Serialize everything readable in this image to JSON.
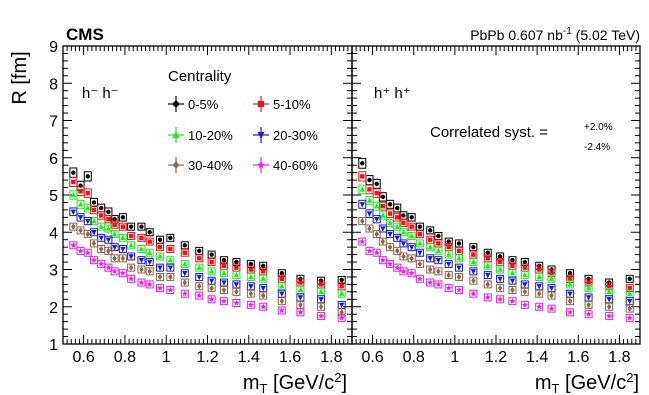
{
  "header": {
    "experiment": "CMS",
    "dataset_prefix": "PbPb 0.607 nb",
    "dataset_exponent": "-1",
    "dataset_suffix": " (5.02 TeV)"
  },
  "legend": {
    "title": "Centrality",
    "entries": [
      "0-5%",
      "5-10%",
      "10-20%",
      "20-30%",
      "30-40%",
      "40-60%"
    ],
    "colors": [
      "#000000",
      "#e8141e",
      "#22e822",
      "#1c1cc8",
      "#8c6448",
      "#e61ee6"
    ],
    "markers": [
      "circle",
      "square",
      "triangle-up",
      "triangle-down",
      "diamond",
      "star"
    ]
  },
  "annotation": {
    "prefix": "Correlated syst. =",
    "plus": "+2.0%",
    "minus": "-2.4%"
  },
  "chart_data": [
    {
      "type": "scatter",
      "panel_label": "h⁻ h⁻",
      "xlabel": "mT [GeV/c²]",
      "ylabel": "R [fm]",
      "xlim": [
        0.5,
        1.9
      ],
      "ylim": [
        1,
        9
      ],
      "xticks": [
        "0.6",
        "0.8",
        "1",
        "1.2",
        "1.4",
        "1.6",
        "1.8"
      ],
      "yticks": [
        "1",
        "2",
        "3",
        "4",
        "5",
        "6",
        "7",
        "8",
        "9"
      ],
      "x": [
        0.55,
        0.585,
        0.62,
        0.65,
        0.685,
        0.72,
        0.75,
        0.79,
        0.83,
        0.88,
        0.92,
        0.97,
        1.02,
        1.09,
        1.16,
        1.22,
        1.28,
        1.34,
        1.41,
        1.47,
        1.56,
        1.65,
        1.75,
        1.85
      ],
      "series": [
        {
          "name": "0-5%",
          "values": [
            5.6,
            5.25,
            5.5,
            4.8,
            4.65,
            4.55,
            4.35,
            4.4,
            4.15,
            4.15,
            4.0,
            3.8,
            3.85,
            3.65,
            3.5,
            3.4,
            3.25,
            3.2,
            3.15,
            3.1,
            2.9,
            2.75,
            2.7,
            2.72
          ]
        },
        {
          "name": "5-10%",
          "values": [
            5.35,
            5.1,
            5.05,
            4.6,
            4.45,
            4.35,
            4.2,
            4.15,
            3.9,
            3.85,
            3.75,
            3.6,
            3.55,
            3.45,
            3.3,
            3.2,
            3.1,
            3.05,
            3.0,
            2.95,
            2.75,
            2.65,
            2.6,
            2.55
          ]
        },
        {
          "name": "10-20%",
          "values": [
            5.0,
            4.75,
            4.65,
            4.3,
            4.15,
            4.1,
            3.95,
            3.85,
            3.65,
            3.55,
            3.45,
            3.35,
            3.25,
            3.15,
            3.05,
            2.95,
            2.9,
            2.85,
            2.8,
            2.75,
            2.55,
            2.45,
            2.4,
            2.35
          ]
        },
        {
          "name": "20-30%",
          "values": [
            4.55,
            4.4,
            4.3,
            4.0,
            3.85,
            3.8,
            3.6,
            3.55,
            3.35,
            3.25,
            3.2,
            3.05,
            3.05,
            2.9,
            2.8,
            2.7,
            2.65,
            2.6,
            2.55,
            2.5,
            2.35,
            2.25,
            2.2,
            2.05
          ]
        },
        {
          "name": "30-40%",
          "values": [
            4.15,
            4.05,
            3.95,
            3.7,
            3.55,
            3.5,
            3.3,
            3.3,
            3.05,
            3.0,
            2.95,
            2.8,
            2.8,
            2.65,
            2.55,
            2.5,
            2.45,
            2.4,
            2.35,
            2.3,
            2.15,
            2.05,
            2.0,
            1.85
          ]
        },
        {
          "name": "40-60%",
          "values": [
            3.65,
            3.5,
            3.45,
            3.25,
            3.15,
            3.05,
            2.95,
            2.9,
            2.75,
            2.65,
            2.6,
            2.5,
            2.45,
            2.35,
            2.3,
            2.2,
            2.15,
            2.1,
            2.05,
            2.0,
            1.9,
            1.85,
            1.75,
            1.7
          ]
        }
      ]
    },
    {
      "type": "scatter",
      "panel_label": "h⁺ h⁺",
      "xlabel": "mT [GeV/c²]",
      "ylabel": "R [fm]",
      "xlim": [
        0.5,
        1.9
      ],
      "ylim": [
        1,
        9
      ],
      "xticks": [
        "0.6",
        "0.8",
        "1",
        "1.2",
        "1.4",
        "1.6",
        "1.8"
      ],
      "yticks": [
        "1",
        "2",
        "3",
        "4",
        "5",
        "6",
        "7",
        "8",
        "9"
      ],
      "x": [
        0.55,
        0.585,
        0.62,
        0.65,
        0.685,
        0.72,
        0.75,
        0.79,
        0.83,
        0.88,
        0.92,
        0.97,
        1.02,
        1.09,
        1.16,
        1.22,
        1.28,
        1.34,
        1.41,
        1.47,
        1.56,
        1.65,
        1.75,
        1.85
      ],
      "series": [
        {
          "name": "0-5%",
          "values": [
            5.85,
            5.4,
            5.3,
            4.95,
            4.75,
            4.65,
            4.45,
            4.4,
            4.15,
            4.05,
            3.9,
            3.75,
            3.7,
            3.6,
            3.45,
            3.35,
            3.25,
            3.2,
            3.1,
            3.0,
            2.9,
            2.75,
            2.65,
            2.75
          ]
        },
        {
          "name": "5-10%",
          "values": [
            5.5,
            5.15,
            5.05,
            4.7,
            4.5,
            4.4,
            4.25,
            4.15,
            3.95,
            3.8,
            3.7,
            3.6,
            3.5,
            3.4,
            3.3,
            3.2,
            3.1,
            3.05,
            3.0,
            2.9,
            2.75,
            2.65,
            2.55,
            2.5
          ]
        },
        {
          "name": "10-20%",
          "values": [
            5.15,
            4.85,
            4.7,
            4.45,
            4.25,
            4.15,
            4.0,
            3.9,
            3.7,
            3.6,
            3.5,
            3.4,
            3.3,
            3.2,
            3.1,
            3.0,
            2.9,
            2.85,
            2.8,
            2.75,
            2.6,
            2.5,
            2.4,
            2.35
          ]
        },
        {
          "name": "20-30%",
          "values": [
            4.75,
            4.5,
            4.35,
            4.1,
            3.95,
            3.85,
            3.7,
            3.6,
            3.45,
            3.3,
            3.25,
            3.15,
            3.05,
            2.95,
            2.85,
            2.75,
            2.7,
            2.6,
            2.55,
            2.5,
            2.35,
            2.25,
            2.2,
            2.15
          ]
        },
        {
          "name": "30-40%",
          "values": [
            4.3,
            4.1,
            3.95,
            3.75,
            3.6,
            3.5,
            3.35,
            3.3,
            3.15,
            3.0,
            2.95,
            2.85,
            2.8,
            2.7,
            2.6,
            2.5,
            2.45,
            2.4,
            2.35,
            2.3,
            2.15,
            2.05,
            2.0,
            1.95
          ]
        },
        {
          "name": "40-60%",
          "values": [
            3.75,
            3.5,
            3.45,
            3.25,
            3.15,
            3.05,
            2.95,
            2.9,
            2.75,
            2.65,
            2.6,
            2.5,
            2.45,
            2.35,
            2.25,
            2.2,
            2.15,
            2.05,
            2.0,
            1.95,
            1.85,
            1.8,
            1.75,
            1.7
          ]
        }
      ]
    }
  ]
}
